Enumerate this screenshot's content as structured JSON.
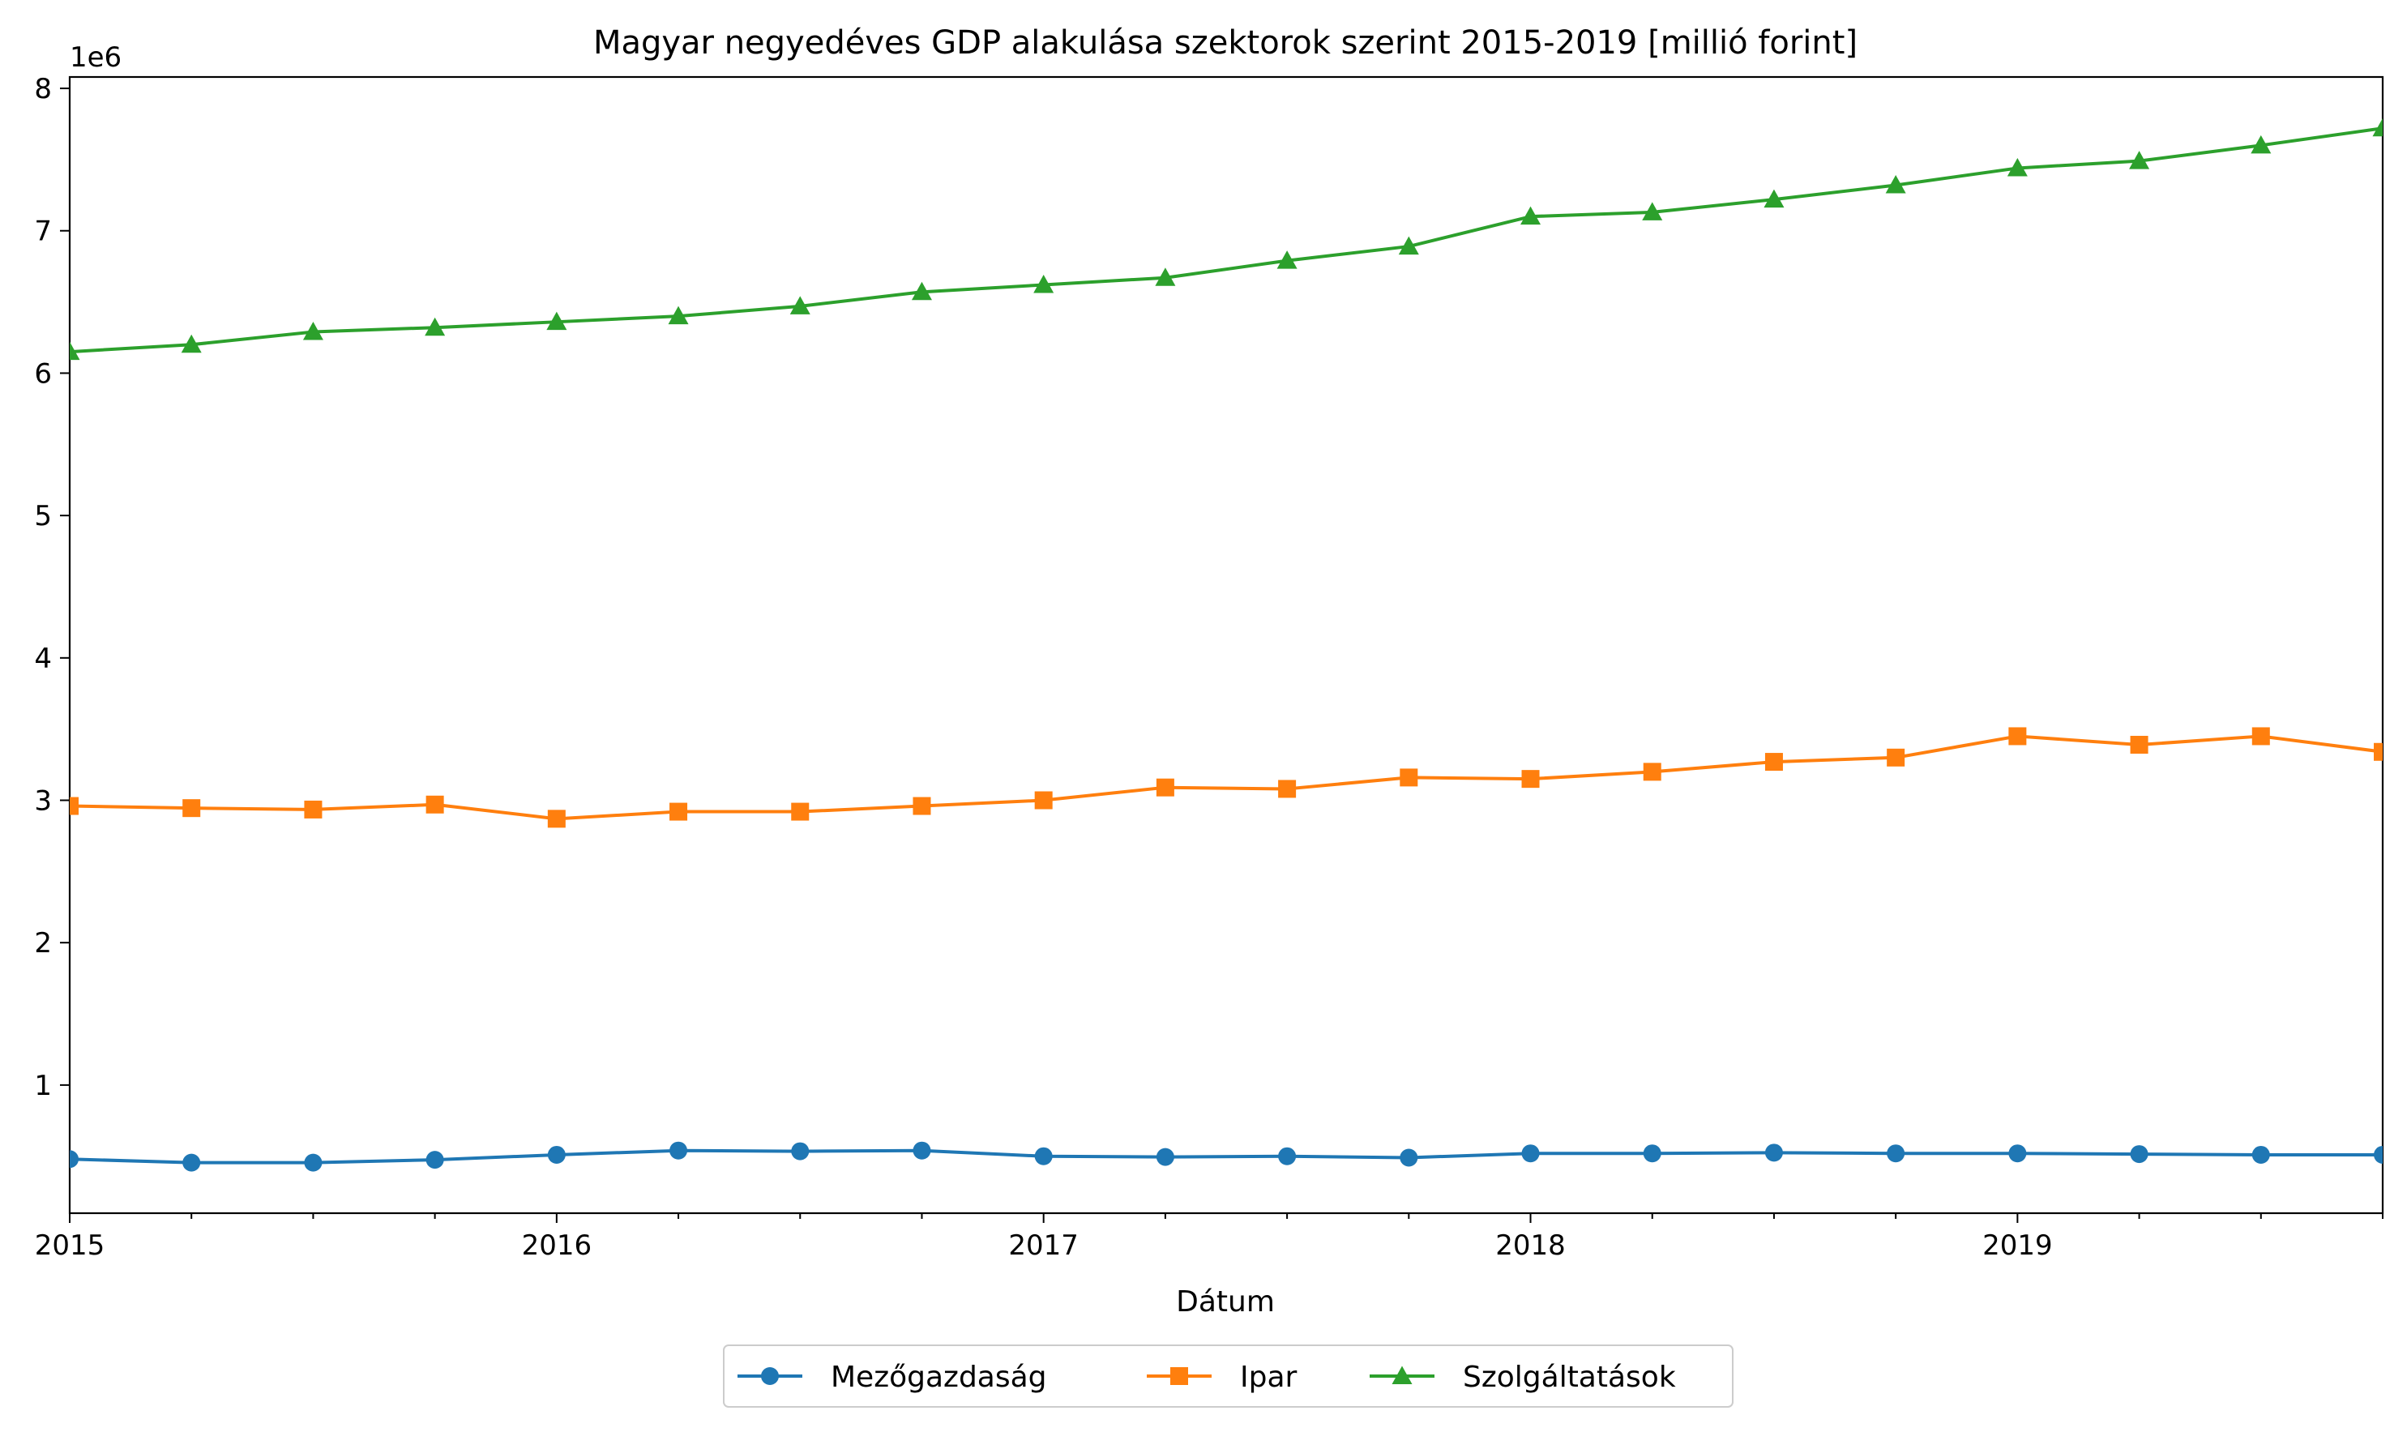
{
  "chart_data": {
    "type": "line",
    "title": "Magyar negyedéves GDP alakulása szektorok szerint 2015-2019 [millió forint]",
    "xlabel": "Dátum",
    "ylabel": "",
    "y_offset_label": "1e6",
    "x": [
      "2015Q1",
      "2015Q2",
      "2015Q3",
      "2015Q4",
      "2016Q1",
      "2016Q2",
      "2016Q3",
      "2016Q4",
      "2017Q1",
      "2017Q2",
      "2017Q3",
      "2017Q4",
      "2018Q1",
      "2018Q2",
      "2018Q3",
      "2018Q4",
      "2019Q1",
      "2019Q2",
      "2019Q3",
      "2019Q4"
    ],
    "x_ticks": [
      "2015",
      "2016",
      "2017",
      "2018",
      "2019"
    ],
    "y_ticks": [
      "1",
      "2",
      "3",
      "4",
      "5",
      "6",
      "7",
      "8"
    ],
    "ylim": [
      100000,
      8080000
    ],
    "grid": false,
    "legend_position": "bottom-center",
    "series": [
      {
        "name": "Mezőgazdaság",
        "color": "#1f77b4",
        "marker": "circle",
        "values": [
          480000,
          455000,
          455000,
          475000,
          510000,
          540000,
          535000,
          540000,
          500000,
          495000,
          500000,
          490000,
          520000,
          520000,
          525000,
          520000,
          520000,
          515000,
          510000,
          510000
        ]
      },
      {
        "name": "Ipar",
        "color": "#ff7f0e",
        "marker": "square",
        "values": [
          2960000,
          2945000,
          2935000,
          2970000,
          2870000,
          2920000,
          2920000,
          2960000,
          3000000,
          3090000,
          3080000,
          3160000,
          3150000,
          3200000,
          3270000,
          3300000,
          3450000,
          3390000,
          3450000,
          3340000
        ]
      },
      {
        "name": "Szolgáltatások",
        "color": "#2ca02c",
        "marker": "triangle",
        "values": [
          6150000,
          6200000,
          6290000,
          6320000,
          6360000,
          6400000,
          6470000,
          6570000,
          6620000,
          6670000,
          6790000,
          6890000,
          7100000,
          7130000,
          7220000,
          7320000,
          7440000,
          7490000,
          7600000,
          7720000
        ]
      }
    ]
  }
}
